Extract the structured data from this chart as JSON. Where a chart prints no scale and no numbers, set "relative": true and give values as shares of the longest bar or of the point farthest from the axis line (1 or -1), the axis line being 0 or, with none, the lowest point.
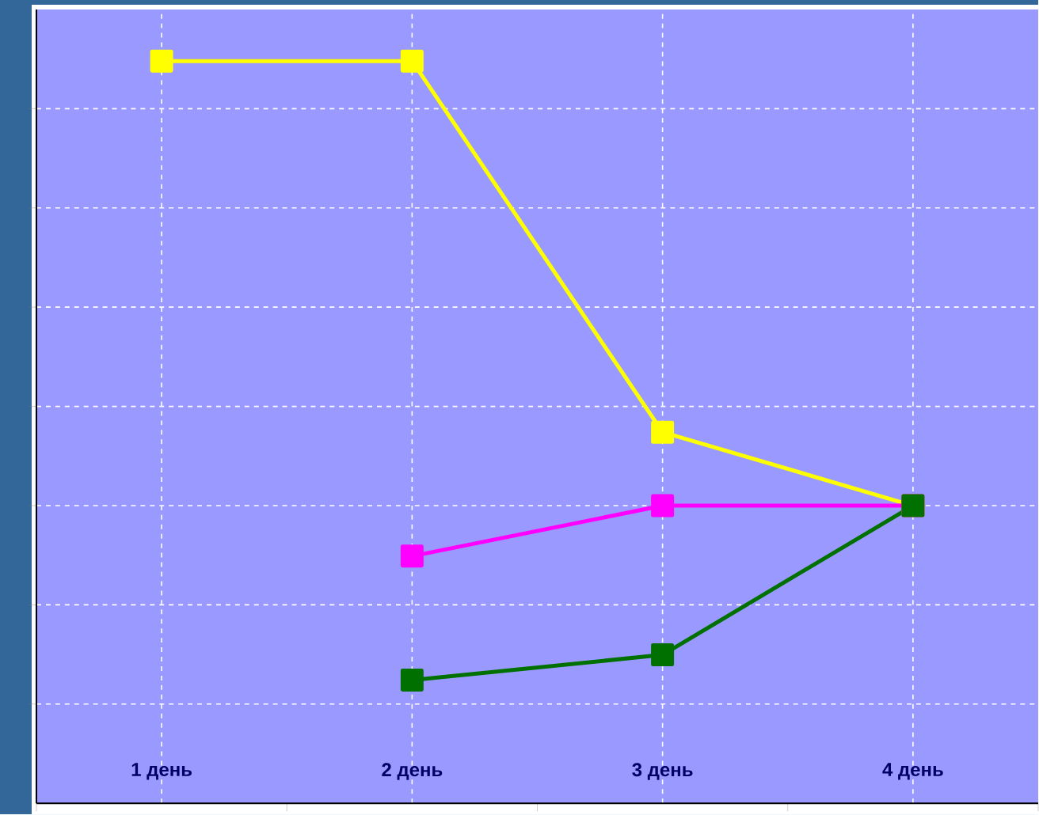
{
  "chart_data": {
    "type": "line",
    "relative": true,
    "grid": true,
    "marker": "square",
    "line_style": "solid",
    "categories": [
      "1 день",
      "2 день",
      "3 день",
      "4 день"
    ],
    "series": [
      {
        "color": "#ffff00",
        "values": [
          1,
          1,
          0.5,
          0.401
        ]
      },
      {
        "color": "#ff00ff",
        "values": [
          null,
          0.333,
          0.401,
          0.401
        ]
      },
      {
        "color": "#007000",
        "values": [
          null,
          0.166,
          0.2,
          0.401
        ]
      }
    ]
  }
}
